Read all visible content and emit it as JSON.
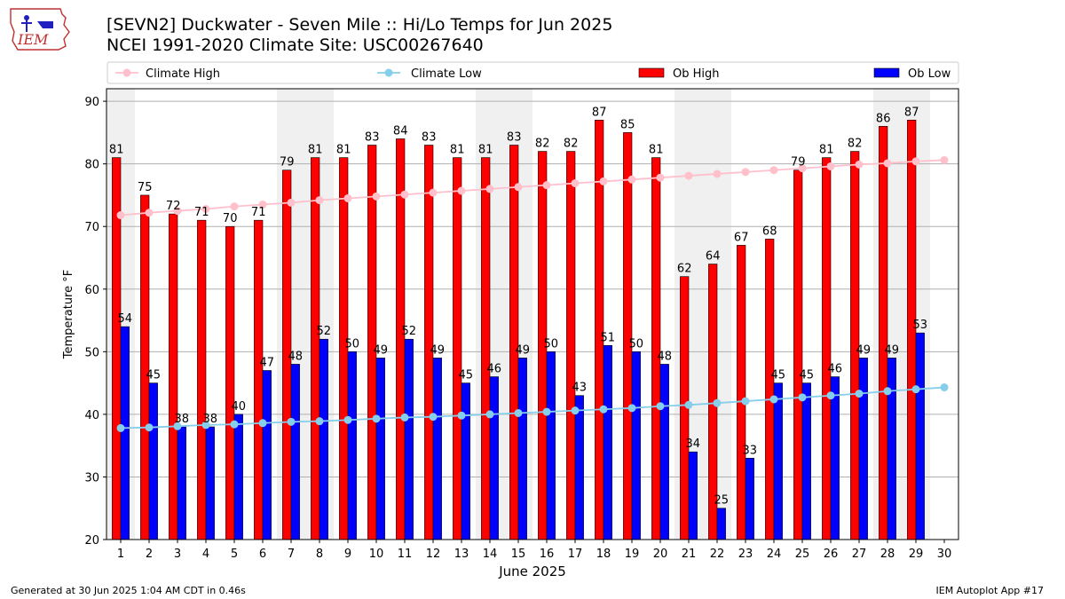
{
  "header": {
    "title_line1": "[SEVN2] Duckwater - Seven Mile :: Hi/Lo Temps for Jun 2025",
    "title_line2": "NCEI 1991-2020 Climate Site: USC00267640",
    "logo_text": "IEM"
  },
  "footer": {
    "left": "Generated at 30 Jun 2025 1:04 AM CDT in 0.46s",
    "right": "IEM Autoplot App #17"
  },
  "colors": {
    "ob_high": "#ff0000",
    "ob_low": "#0000ff",
    "climate_high": "#ffc0cb",
    "climate_low": "#87ceeb",
    "weekend_shade": "#f0f0f0",
    "grid": "#b0b0b0"
  },
  "chart_data": {
    "type": "bar",
    "xlabel": "June 2025",
    "ylabel": "Temperature °F",
    "xlim": [
      0.5,
      30.5
    ],
    "ylim": [
      20,
      92
    ],
    "yticks": [
      20,
      30,
      40,
      50,
      60,
      70,
      80,
      90
    ],
    "grid": "horizontal",
    "legend_placement": "top",
    "categories": [
      1,
      2,
      3,
      4,
      5,
      6,
      7,
      8,
      9,
      10,
      11,
      12,
      13,
      14,
      15,
      16,
      17,
      18,
      19,
      20,
      21,
      22,
      23,
      24,
      25,
      26,
      27,
      28,
      29,
      30
    ],
    "shaded_days": [
      1,
      7,
      8,
      14,
      15,
      21,
      22,
      28,
      29
    ],
    "series": [
      {
        "name": "Climate High",
        "kind": "line",
        "values": [
          71.8,
          72.2,
          72.5,
          72.8,
          73.2,
          73.5,
          73.8,
          74.2,
          74.5,
          74.8,
          75.1,
          75.4,
          75.7,
          76.0,
          76.3,
          76.6,
          76.9,
          77.2,
          77.5,
          77.8,
          78.1,
          78.4,
          78.7,
          79.0,
          79.3,
          79.6,
          79.9,
          80.1,
          80.4,
          80.6
        ]
      },
      {
        "name": "Climate Low",
        "kind": "line",
        "values": [
          37.8,
          37.9,
          38.1,
          38.3,
          38.4,
          38.6,
          38.8,
          38.9,
          39.1,
          39.3,
          39.5,
          39.6,
          39.8,
          40.0,
          40.2,
          40.4,
          40.6,
          40.8,
          41.0,
          41.3,
          41.5,
          41.8,
          42.1,
          42.4,
          42.7,
          43.0,
          43.3,
          43.7,
          44.0,
          44.3
        ]
      },
      {
        "name": "Ob High",
        "kind": "bar",
        "values": [
          81,
          75,
          72,
          71,
          70,
          71,
          79,
          81,
          81,
          83,
          84,
          83,
          81,
          81,
          83,
          82,
          82,
          87,
          85,
          81,
          62,
          64,
          67,
          68,
          79,
          81,
          82,
          86,
          87,
          null
        ]
      },
      {
        "name": "Ob Low",
        "kind": "bar",
        "values": [
          54,
          45,
          38,
          38,
          40,
          47,
          48,
          52,
          50,
          49,
          52,
          49,
          45,
          46,
          49,
          50,
          43,
          51,
          50,
          48,
          34,
          25,
          33,
          45,
          45,
          46,
          49,
          49,
          53,
          null
        ]
      }
    ]
  }
}
